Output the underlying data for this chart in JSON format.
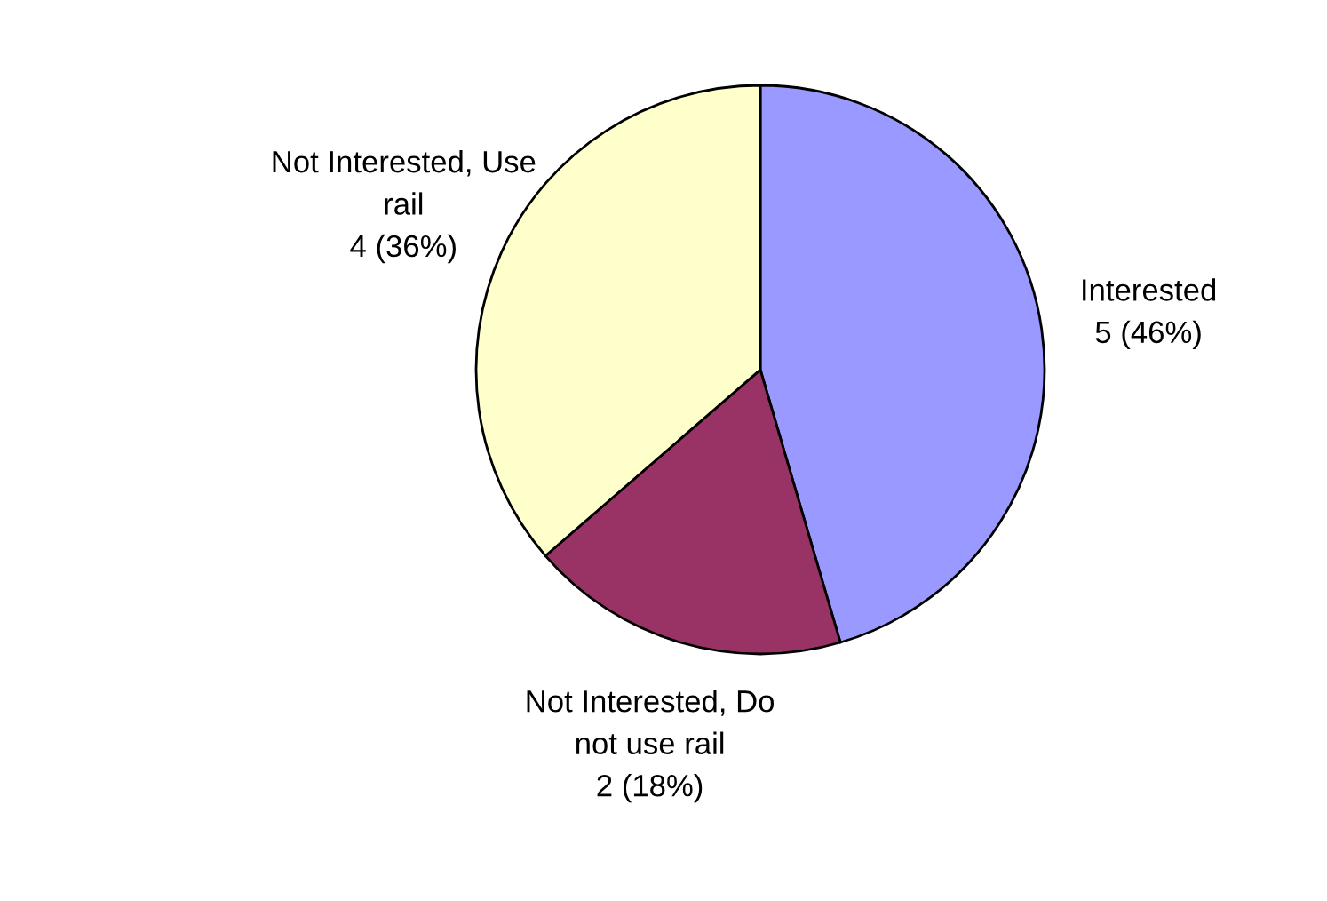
{
  "chart_data": {
    "type": "pie",
    "categories": [
      "Interested",
      "Not Interested, Do\nnot use rail",
      "Not Interested, Use\nrail"
    ],
    "values": [
      5,
      2,
      4
    ],
    "value_labels": [
      "5 (46%)",
      "2 (18%)",
      "4 (36%)"
    ],
    "colors": [
      "#9999ff",
      "#993366",
      "#ffffcc"
    ]
  }
}
